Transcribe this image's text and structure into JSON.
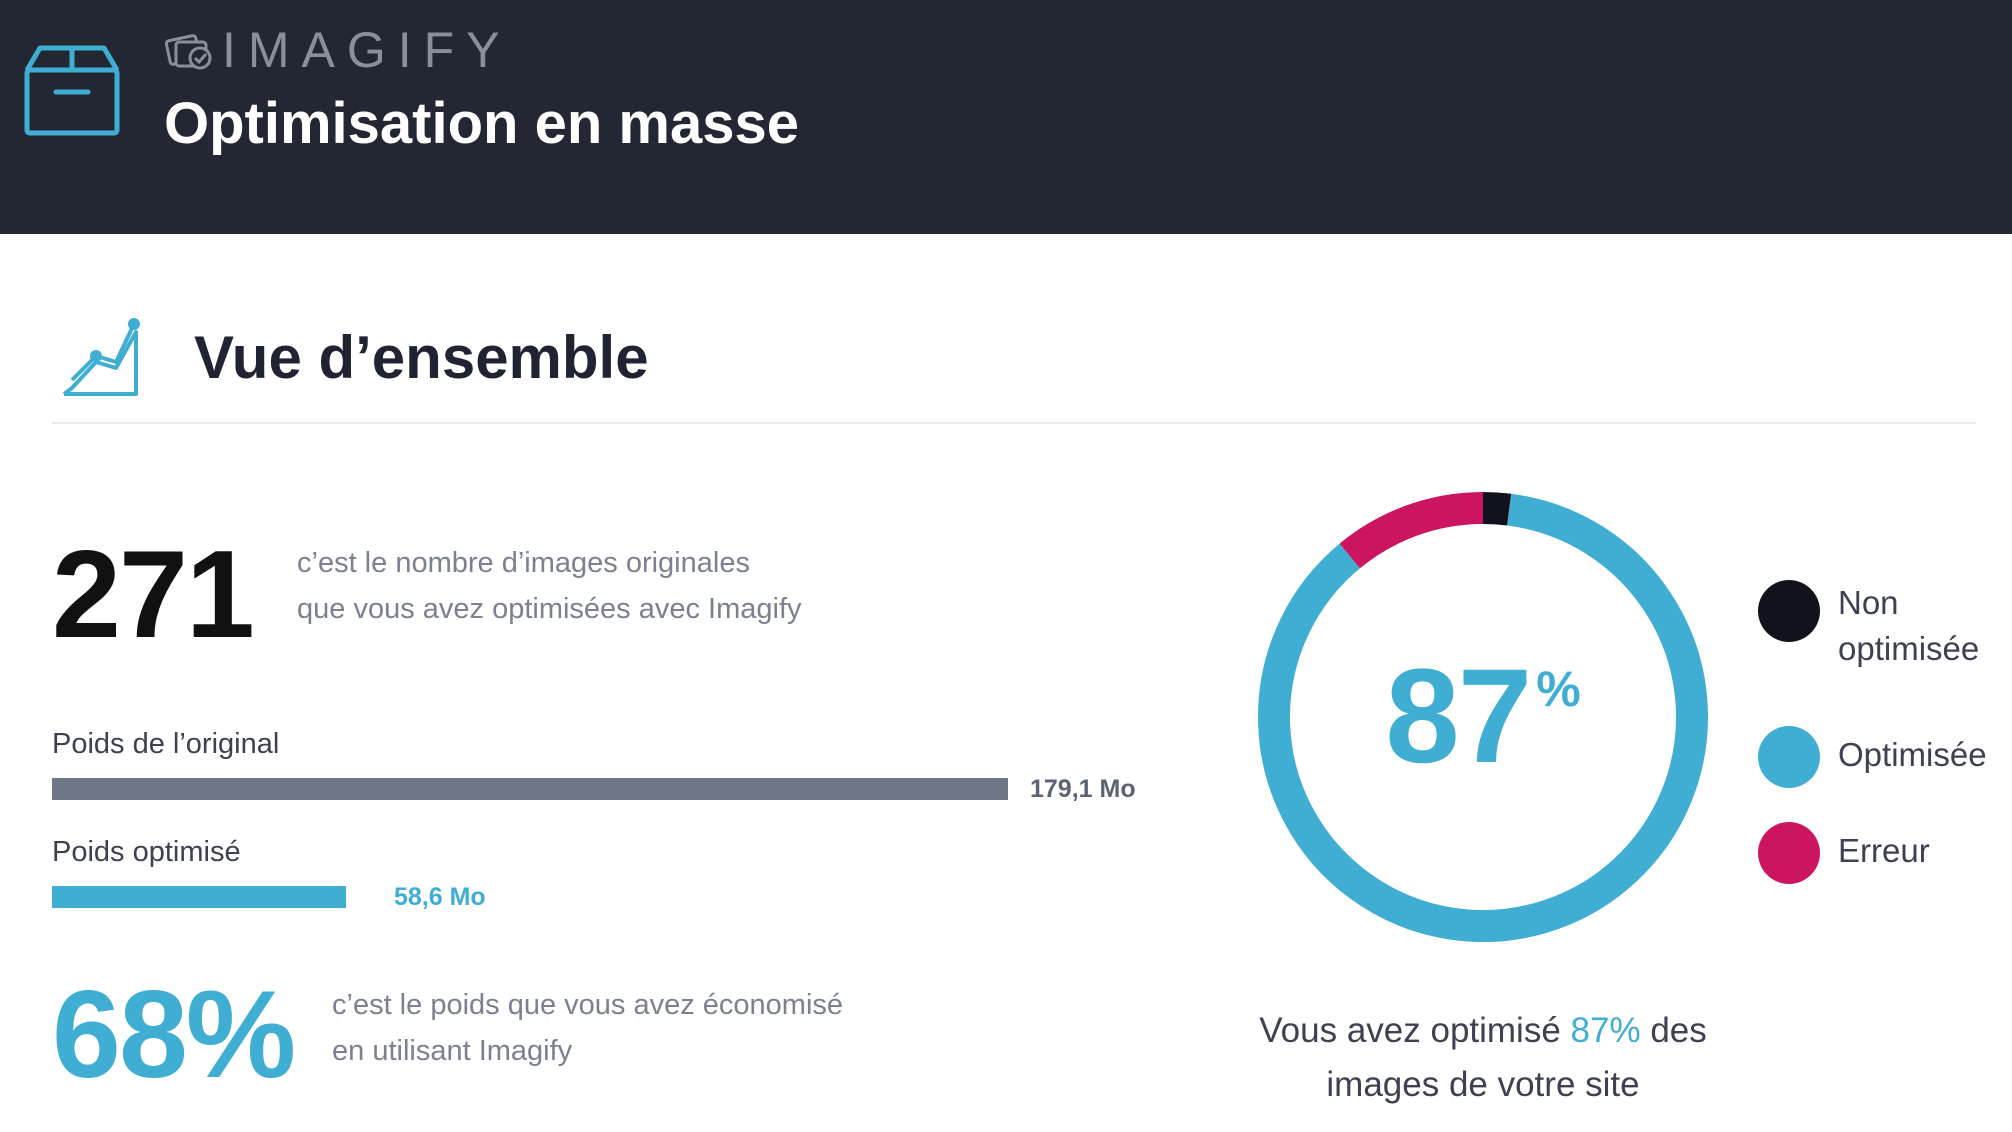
{
  "header": {
    "brand": "IMAGIFY",
    "title": "Optimisation en masse"
  },
  "overview": {
    "title": "Vue d’ensemble",
    "image_count": "271",
    "image_count_desc_line1": "c’est le nombre d’images originales",
    "image_count_desc_line2": "que vous avez optimisées avec Imagify",
    "original": {
      "label": "Poids de l’original",
      "value": "179,1 Mo",
      "fraction": 1.0
    },
    "optimized": {
      "label": "Poids optimisé",
      "value": "58,6 Mo",
      "fraction": 0.327
    },
    "savings_percent": "68%",
    "savings_desc_line1": "c’est le poids que vous avez économisé",
    "savings_desc_line2": "en utilisant Imagify"
  },
  "donut": {
    "value": "87",
    "unit": "%",
    "segments": [
      {
        "name": "Non optimisée",
        "percent": 2,
        "color": "#11131c"
      },
      {
        "name": "Optimisée",
        "percent": 87,
        "color": "#40aed2"
      },
      {
        "name": "Erreur",
        "percent": 11,
        "color": "#cc1560"
      }
    ]
  },
  "legend": {
    "items": [
      {
        "line1": "Non",
        "line2": "optimisée",
        "color": "#11131c"
      },
      {
        "line1": "Optimisée",
        "line2": "",
        "color": "#40aed2"
      },
      {
        "line1": "Erreur",
        "line2": "",
        "color": "#cc1560"
      }
    ]
  },
  "summary": {
    "prefix": "Vous avez optimisé ",
    "percent": "87%",
    "suffix": " des",
    "line2": "images de votre site"
  },
  "colors": {
    "header_bg": "#232633",
    "accent": "#40aed2",
    "error": "#cc1560",
    "dark": "#11131c"
  },
  "icons": {
    "header": "box-icon",
    "brand": "imagify-logo-icon",
    "section": "chart-growth-icon"
  }
}
